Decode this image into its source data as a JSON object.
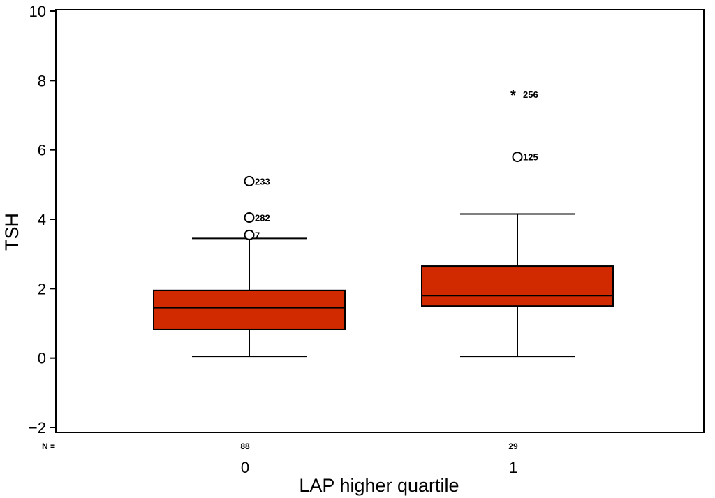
{
  "chart_data": {
    "type": "box",
    "xlabel": "LAP higher quartile",
    "ylabel": "TSH",
    "ylim": [
      -2,
      10
    ],
    "yticks": [
      -2,
      0,
      2,
      4,
      6,
      8,
      10
    ],
    "ytick_labels": [
      "−2",
      "0",
      "2",
      "4",
      "6",
      "8",
      "10"
    ],
    "n_row_label": "N =",
    "box_color": "#d12a00",
    "grid": false,
    "categories": [
      "0",
      "1"
    ],
    "n_values": [
      "88",
      "29"
    ],
    "boxes": [
      {
        "category": "0",
        "whisker_low": 0.05,
        "q1": 0.82,
        "median": 1.45,
        "q3": 1.95,
        "whisker_high": 3.45,
        "outliers": [
          {
            "value": 5.1,
            "label": "233",
            "marker": "circle"
          },
          {
            "value": 4.05,
            "label": "282",
            "marker": "circle"
          },
          {
            "value": 3.55,
            "label": "7",
            "marker": "circle"
          }
        ]
      },
      {
        "category": "1",
        "whisker_low": 0.05,
        "q1": 1.5,
        "median": 1.8,
        "q3": 2.65,
        "whisker_high": 4.15,
        "outliers": [
          {
            "value": 7.6,
            "label": "256",
            "marker": "star"
          },
          {
            "value": 5.8,
            "label": "125",
            "marker": "circle"
          }
        ]
      }
    ]
  }
}
